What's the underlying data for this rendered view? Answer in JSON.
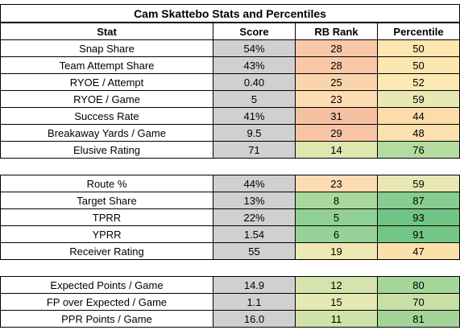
{
  "title": "Cam Skattebo Stats and Percentiles",
  "headers": {
    "stat": "Stat",
    "score": "Score",
    "rank": "RB Rank",
    "percentile": "Percentile"
  },
  "sections": [
    {
      "rows": [
        {
          "stat": "Snap Share",
          "score": "54%",
          "rank": "28",
          "percentile": "50",
          "rank_color": "#f8c8a8",
          "pct_color": "#fde6b0"
        },
        {
          "stat": "Team Attempt Share",
          "score": "43%",
          "rank": "28",
          "percentile": "50",
          "rank_color": "#f8c8a8",
          "pct_color": "#fde6b0"
        },
        {
          "stat": "RYOE / Attempt",
          "score": "0.40",
          "rank": "25",
          "percentile": "52",
          "rank_color": "#fad4ac",
          "pct_color": "#fbe8b2"
        },
        {
          "stat": "RYOE / Game",
          "score": "5",
          "rank": "23",
          "percentile": "59",
          "rank_color": "#fcdcb0",
          "pct_color": "#e8e8b4"
        },
        {
          "stat": "Success Rate",
          "score": "41%",
          "rank": "31",
          "percentile": "44",
          "rank_color": "#f6c0a2",
          "pct_color": "#fbdcaa"
        },
        {
          "stat": "Breakaway Yards / Game",
          "score": "9.5",
          "rank": "29",
          "percentile": "48",
          "rank_color": "#f7c4a6",
          "pct_color": "#fce2ae"
        },
        {
          "stat": "Elusive Rating",
          "score": "71",
          "rank": "14",
          "percentile": "76",
          "rank_color": "#dfe6b0",
          "pct_color": "#b4dca0"
        }
      ]
    },
    {
      "rows": [
        {
          "stat": "Route %",
          "score": "44%",
          "rank": "23",
          "percentile": "59",
          "rank_color": "#fcdcb0",
          "pct_color": "#e8e8b4"
        },
        {
          "stat": "Target Share",
          "score": "13%",
          "rank": "8",
          "percentile": "87",
          "rank_color": "#a8d89c",
          "pct_color": "#88cc90"
        },
        {
          "stat": "TPRR",
          "score": "22%",
          "rank": "5",
          "percentile": "93",
          "rank_color": "#90d094",
          "pct_color": "#70c484"
        },
        {
          "stat": "YPRR",
          "score": "1.54",
          "rank": "6",
          "percentile": "91",
          "rank_color": "#98d296",
          "pct_color": "#74c686"
        },
        {
          "stat": "Receiver Rating",
          "score": "55",
          "rank": "19",
          "percentile": "47",
          "rank_color": "#eee8b4",
          "pct_color": "#fce0ac"
        }
      ]
    },
    {
      "rows": [
        {
          "stat": "Expected Points / Game",
          "score": "14.9",
          "rank": "12",
          "percentile": "80",
          "rank_color": "#d4e4ac",
          "pct_color": "#a6d69a"
        },
        {
          "stat": "FP over Expected / Game",
          "score": "1.1",
          "rank": "15",
          "percentile": "70",
          "rank_color": "#e4e8b2",
          "pct_color": "#c8e0a6"
        },
        {
          "stat": "PPR Points / Game",
          "score": "16.0",
          "rank": "11",
          "percentile": "81",
          "rank_color": "#cfe2aa",
          "pct_color": "#a2d498"
        }
      ]
    }
  ]
}
